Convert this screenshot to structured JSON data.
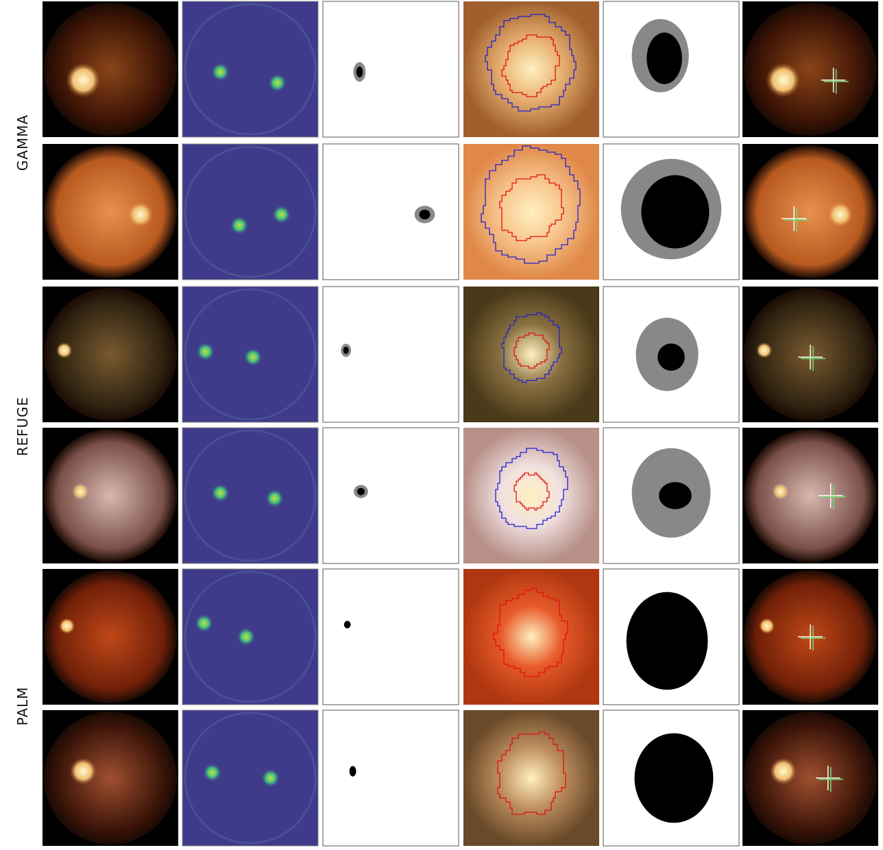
{
  "row_labels": [
    "GAMMA",
    "REFUGE",
    "PALM"
  ]
}
